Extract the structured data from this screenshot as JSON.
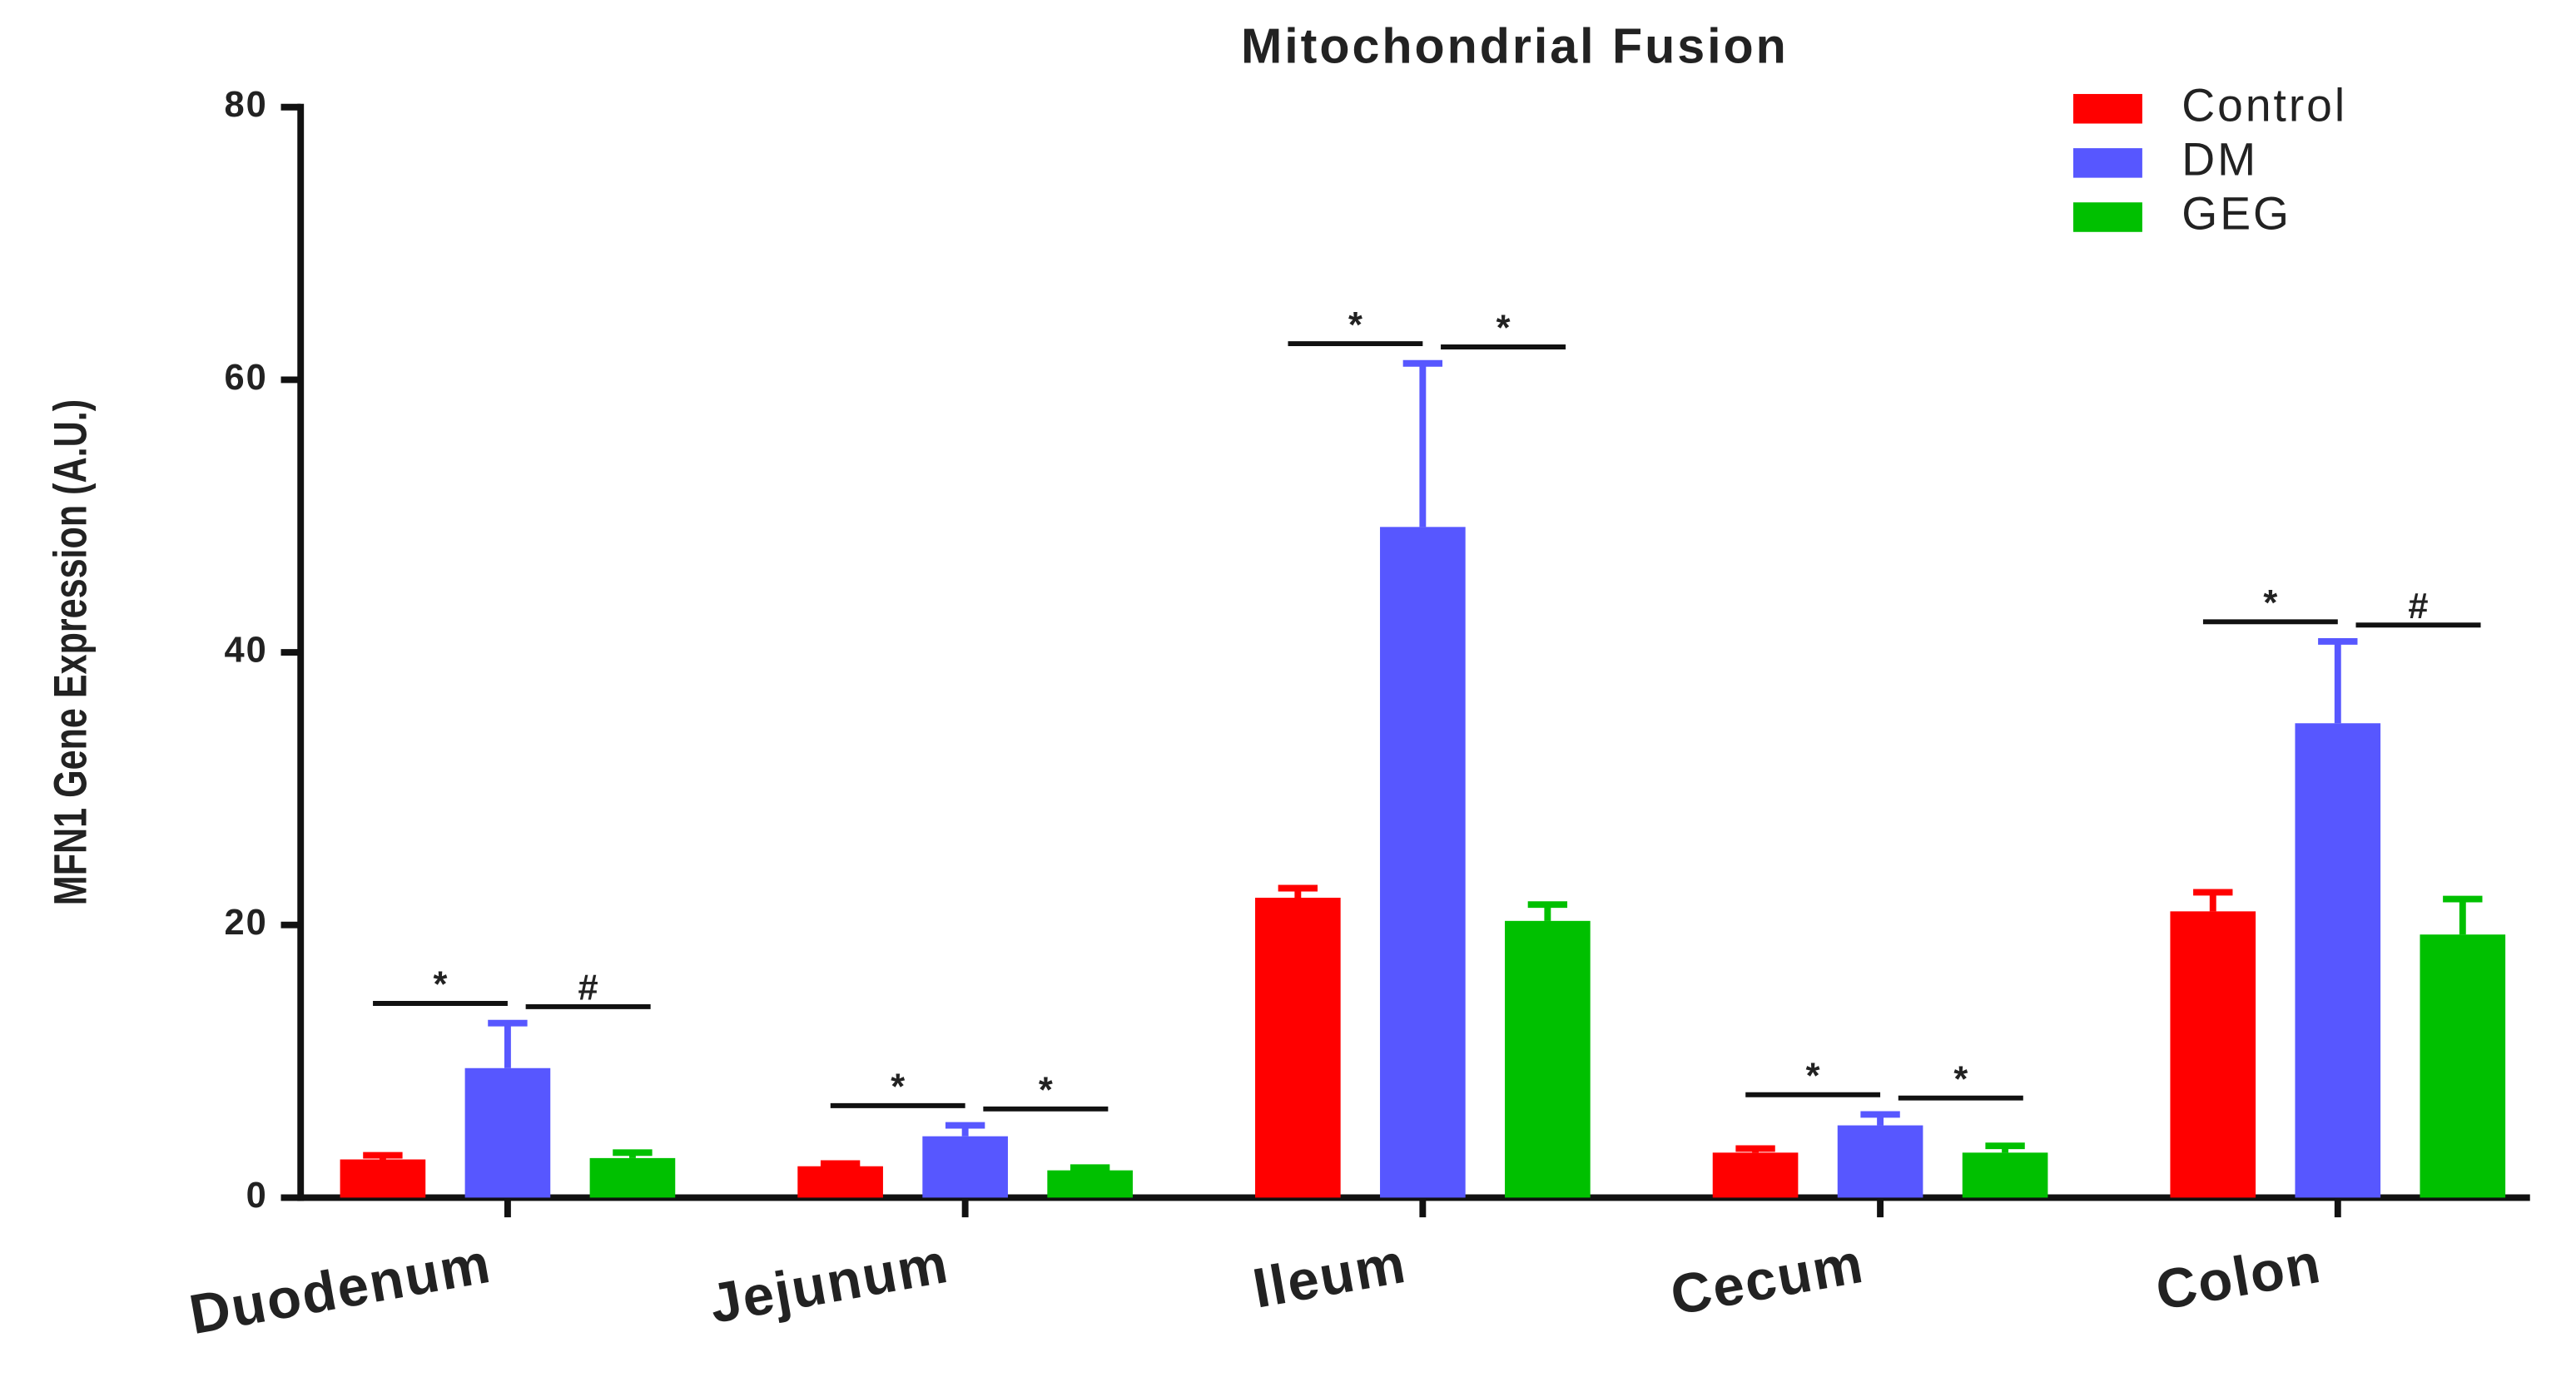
{
  "chart_data": {
    "type": "bar",
    "title": "Mitochondrial Fusion",
    "y_label": "MFN1 Gene Expression (A.U.)",
    "categories": [
      "Duodenum",
      "Jejunum",
      "Ileum",
      "Cecum",
      "Colon"
    ],
    "series": [
      {
        "name": "Control",
        "color": "#ff0000",
        "values": [
          2.8,
          2.3,
          22.0,
          3.3,
          21.0
        ],
        "errors": [
          0.3,
          0.2,
          0.7,
          0.3,
          1.4
        ]
      },
      {
        "name": "DM",
        "color": "#5757ff",
        "values": [
          9.5,
          4.5,
          49.2,
          5.3,
          34.8
        ],
        "errors": [
          3.3,
          0.8,
          12.0,
          0.8,
          6.0
        ]
      },
      {
        "name": "GEG",
        "color": "#00c000",
        "values": [
          2.9,
          2.0,
          20.3,
          3.3,
          19.3
        ],
        "errors": [
          0.4,
          0.2,
          1.2,
          0.5,
          2.6
        ]
      }
    ],
    "significance": [
      [
        "*",
        "#"
      ],
      [
        "*",
        "*"
      ],
      [
        "*",
        "*"
      ],
      [
        "*",
        "*"
      ],
      [
        "*",
        "#"
      ]
    ],
    "ylim": [
      0,
      80
    ],
    "yticks": [
      0,
      20,
      40,
      60,
      80
    ],
    "legend": "top-right"
  }
}
